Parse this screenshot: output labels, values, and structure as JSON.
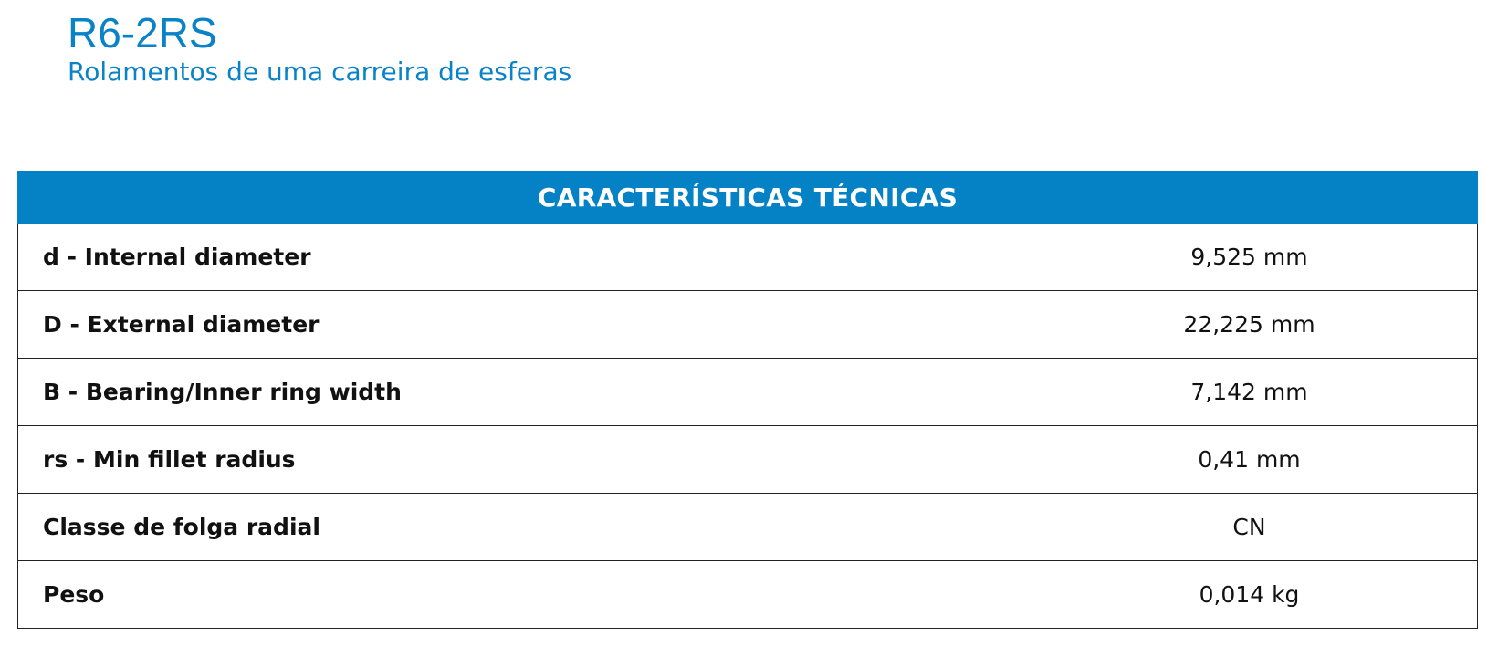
{
  "header": {
    "product_code": "R6-2RS",
    "subtitle": "Rolamentos de uma carreira de esferas"
  },
  "table": {
    "title": "CARACTERÍSTICAS TÉCNICAS",
    "rows": [
      {
        "label": "d - Internal diameter",
        "value": "9,525 mm"
      },
      {
        "label": "D - External diameter",
        "value": "22,225 mm"
      },
      {
        "label": "B - Bearing/Inner ring width",
        "value": "7,142 mm"
      },
      {
        "label": "rs - Min fillet radius",
        "value": "0,41 mm"
      },
      {
        "label": "Classe de folga radial",
        "value": "CN"
      },
      {
        "label": "Peso",
        "value": "0,014 kg"
      }
    ]
  },
  "colors": {
    "accent": "#0582c6",
    "title_text": "#0a82c8",
    "border": "#222222"
  }
}
